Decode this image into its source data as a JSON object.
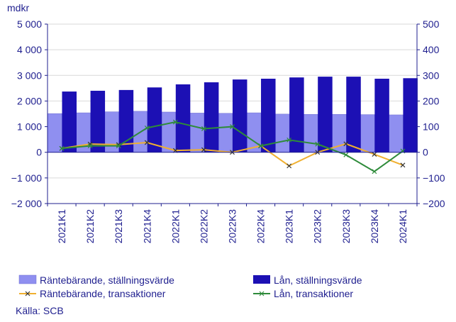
{
  "chart_data": {
    "type": "bar",
    "unit_label": "mdkr",
    "source": "Källa: SCB",
    "categories": [
      "2021K1",
      "2021K2",
      "2021K3",
      "2021K4",
      "2022K1",
      "2022K2",
      "2022K3",
      "2022K4",
      "2023K1",
      "2023K2",
      "2023K3",
      "2023K4",
      "2024K1"
    ],
    "y_left": {
      "ylim": [
        -2000,
        5000
      ],
      "ticks": [
        -2000,
        -1000,
        0,
        1000,
        2000,
        3000,
        4000,
        5000
      ],
      "tick_labels": [
        "−2 000",
        "−1 000",
        "0",
        "1 000",
        "2 000",
        "3 000",
        "4 000",
        "5 000"
      ]
    },
    "y_right": {
      "ylim": [
        -200,
        500
      ],
      "ticks": [
        -200,
        -100,
        0,
        100,
        200,
        300,
        400,
        500
      ],
      "tick_labels": [
        "−200",
        "−100",
        "0",
        "100",
        "200",
        "300",
        "400",
        "500"
      ]
    },
    "grid": "horizontal",
    "legend_position": "bottom",
    "series": [
      {
        "name": "Räntebärande, ställningsvärde",
        "kind": "bar",
        "axis": "left",
        "color": "#8f8ff0",
        "values": [
          1510,
          1540,
          1580,
          1600,
          1570,
          1530,
          1520,
          1540,
          1490,
          1480,
          1480,
          1470,
          1460
        ]
      },
      {
        "name": "Lån, ställningsvärde",
        "kind": "bar",
        "axis": "left",
        "color": "#1c10b4",
        "values": [
          2370,
          2400,
          2430,
          2530,
          2650,
          2730,
          2840,
          2870,
          2920,
          2950,
          2950,
          2870,
          2890
        ]
      },
      {
        "name": "Räntebärande, transaktioner",
        "kind": "line",
        "axis": "right",
        "color": "#f0b030",
        "marker": "x",
        "values": [
          15,
          32,
          30,
          38,
          7,
          10,
          0,
          25,
          -53,
          0,
          33,
          -8,
          -50
        ]
      },
      {
        "name": "Lån, transaktioner",
        "kind": "line",
        "axis": "right",
        "color": "#2e8b3a",
        "marker": "x",
        "values": [
          15,
          25,
          25,
          95,
          118,
          92,
          100,
          25,
          48,
          32,
          -10,
          -75,
          5
        ]
      }
    ]
  }
}
